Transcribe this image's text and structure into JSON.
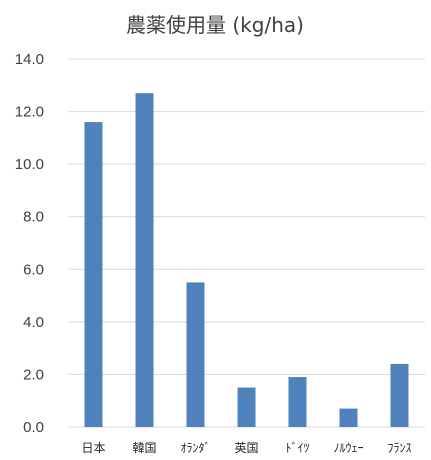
{
  "chart_data": {
    "type": "bar",
    "title": "農薬使用量 (kg/ha)",
    "categories": [
      "日本",
      "韓国",
      "ｵﾗﾝﾀﾞ",
      "英国",
      "ﾄﾞｲﾂ",
      "ﾉﾙｳｪｰ",
      "ﾌﾗﾝｽ"
    ],
    "values": [
      11.6,
      12.7,
      5.5,
      1.5,
      1.9,
      0.7,
      2.4
    ],
    "ylim": [
      0,
      14
    ],
    "yticks": [
      "0.0",
      "2.0",
      "4.0",
      "6.0",
      "8.0",
      "10.0",
      "12.0",
      "14.0"
    ],
    "grid": true,
    "bar_color": "#4F81BD",
    "grid_color": "#D9D9D9"
  }
}
